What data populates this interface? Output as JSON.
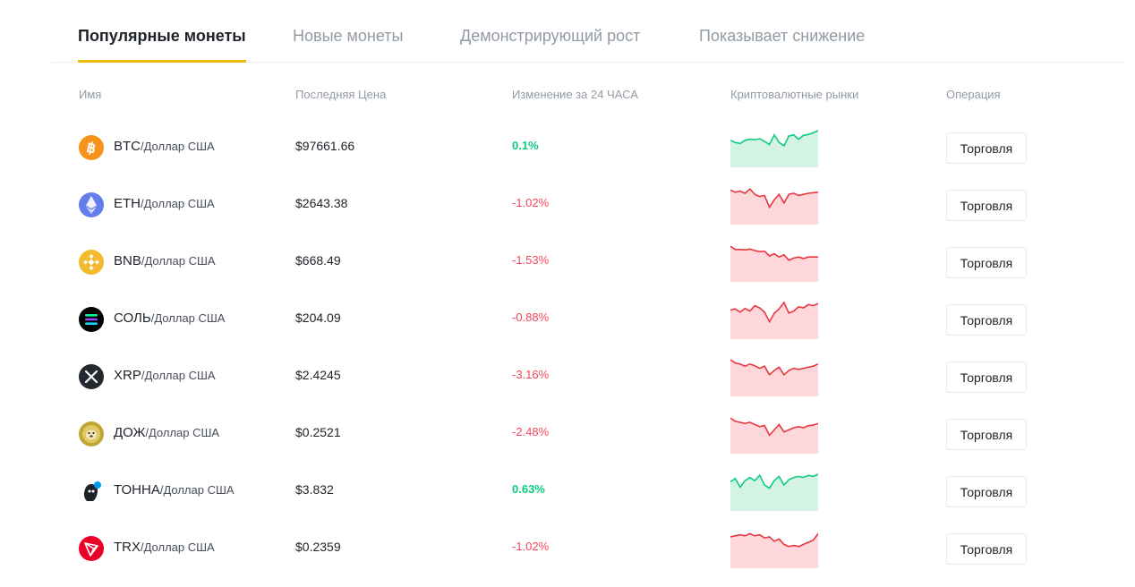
{
  "tabs": [
    {
      "label": "Популярные монеты",
      "active": true
    },
    {
      "label": "Новые монеты",
      "active": false
    },
    {
      "label": "Демонстрирующий рост",
      "active": false
    },
    {
      "label": "Показывает снижение",
      "active": false
    }
  ],
  "columns": {
    "name": "Имя",
    "price": "Последняя Цена",
    "change": "Изменение за 24 ЧАСА",
    "markets": "Криптовалютные рынки",
    "operation": "Операция"
  },
  "colors": {
    "accent": "#f0b90b",
    "up": "#0ecb81",
    "down": "#f6465d",
    "up_fill": "#d4f4e3",
    "down_fill": "#fdd7d9"
  },
  "rows": [
    {
      "symbol": "BTC",
      "quote": "/Доллар США",
      "price": "$97661.66",
      "change": "0.1%",
      "trend": "up",
      "icon": "bitcoin-icon",
      "spark": [
        0.55,
        0.45,
        0.4,
        0.55,
        0.6,
        0.58,
        0.62,
        0.5,
        0.35,
        0.8,
        0.45,
        0.3,
        0.75,
        0.8,
        0.6,
        0.78,
        0.82,
        0.9,
        1.0
      ]
    },
    {
      "symbol": "ETH",
      "quote": "/Доллар США",
      "price": "$2643.38",
      "change": "-1.02%",
      "trend": "down",
      "icon": "ethereum-icon",
      "spark": [
        0.9,
        0.8,
        0.85,
        0.75,
        0.95,
        0.7,
        0.6,
        0.65,
        0.1,
        0.45,
        0.7,
        0.3,
        0.7,
        0.75,
        0.65,
        0.7,
        0.75,
        0.78,
        0.8
      ]
    },
    {
      "symbol": "BNB",
      "quote": "/Доллар США",
      "price": "$668.49",
      "change": "-1.53%",
      "trend": "down",
      "icon": "bnb-icon",
      "spark": [
        0.95,
        0.8,
        0.8,
        0.78,
        0.82,
        0.75,
        0.7,
        0.72,
        0.5,
        0.6,
        0.45,
        0.55,
        0.3,
        0.4,
        0.45,
        0.38,
        0.45,
        0.45,
        0.45
      ]
    },
    {
      "symbol": "СОЛЬ",
      "quote": "/Доллар США",
      "price": "$204.09",
      "change": "-0.88%",
      "trend": "down",
      "icon": "solana-icon",
      "spark": [
        0.65,
        0.7,
        0.55,
        0.72,
        0.6,
        0.85,
        0.75,
        0.55,
        0.1,
        0.5,
        0.7,
        1.0,
        0.5,
        0.6,
        0.8,
        0.75,
        0.9,
        0.85,
        0.95
      ]
    },
    {
      "symbol": "XRP",
      "quote": "/Доллар США",
      "price": "$2.4245",
      "change": "-3.16%",
      "trend": "down",
      "icon": "xrp-icon",
      "spark": [
        1.0,
        0.85,
        0.8,
        0.7,
        0.8,
        0.72,
        0.6,
        0.7,
        0.3,
        0.5,
        0.65,
        0.3,
        0.5,
        0.6,
        0.55,
        0.6,
        0.65,
        0.7,
        0.8
      ]
    },
    {
      "symbol": "ДОЖ",
      "quote": "/Доллар США",
      "price": "$0.2521",
      "change": "-2.48%",
      "trend": "down",
      "icon": "dogecoin-icon",
      "spark": [
        0.95,
        0.8,
        0.75,
        0.7,
        0.75,
        0.65,
        0.55,
        0.6,
        0.15,
        0.4,
        0.65,
        0.3,
        0.4,
        0.5,
        0.55,
        0.5,
        0.6,
        0.62,
        0.7
      ]
    },
    {
      "symbol": "ТОННА",
      "quote": "/Доллар США",
      "price": "$3.832",
      "change": "0.63%",
      "trend": "up",
      "icon": "toncoin-icon",
      "spark": [
        0.65,
        0.8,
        0.4,
        0.7,
        0.85,
        0.7,
        0.95,
        0.5,
        0.35,
        0.7,
        0.9,
        0.5,
        0.75,
        0.85,
        0.9,
        0.85,
        0.95,
        0.9,
        1.0
      ]
    },
    {
      "symbol": "TRX",
      "quote": "/Доллар США",
      "price": "$0.2359",
      "change": "-1.02%",
      "trend": "down",
      "icon": "tron-icon",
      "spark": [
        0.75,
        0.8,
        0.85,
        0.8,
        0.9,
        0.8,
        0.85,
        0.7,
        0.75,
        0.55,
        0.65,
        0.4,
        0.3,
        0.35,
        0.3,
        0.4,
        0.5,
        0.6,
        0.9
      ]
    }
  ],
  "trade_label": "Торговля"
}
